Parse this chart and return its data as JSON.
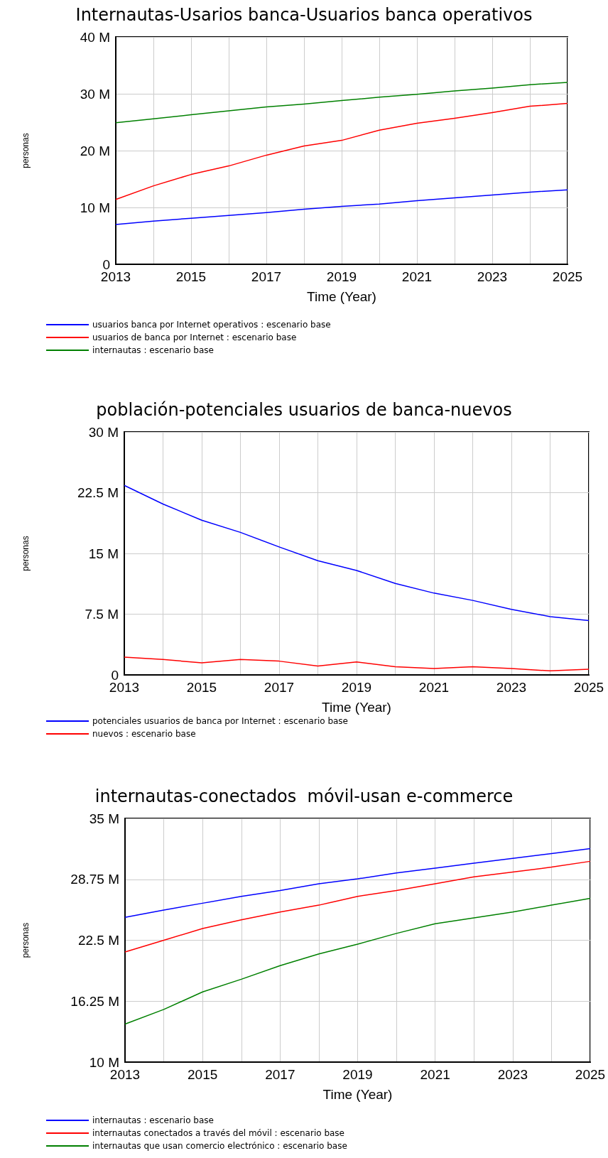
{
  "chart_data": [
    {
      "type": "line",
      "title": "Internautas-Usarios banca-Usuarios banca operativos",
      "xlabel": "Time (Year)",
      "ylabel": "personas",
      "x": [
        2013,
        2014,
        2015,
        2016,
        2017,
        2018,
        2019,
        2020,
        2021,
        2022,
        2023,
        2024,
        2025
      ],
      "xlim": [
        2013,
        2025
      ],
      "xticks": [
        2013,
        {
          "value": 2014,
          "label": null
        },
        2015,
        {
          "value": 2016,
          "label": null
        },
        2017,
        {
          "value": 2018,
          "label": null
        },
        2019,
        {
          "value": 2020,
          "label": null
        },
        2021,
        {
          "value": 2022,
          "label": null
        },
        2023,
        {
          "value": 2024,
          "label": null
        },
        2025
      ],
      "ylim": [
        0,
        40
      ],
      "yticks": [
        {
          "value": 0,
          "label": "0"
        },
        {
          "value": 10,
          "label": "10 M"
        },
        {
          "value": 20,
          "label": "20 M"
        },
        {
          "value": 30,
          "label": "30 M"
        },
        {
          "value": 40,
          "label": "40 M"
        }
      ],
      "grid": true,
      "legend": "bottom",
      "series": [
        {
          "name": "usuarios banca por Internet operativos : escenario base",
          "color": "#0000ff",
          "values": [
            7.0,
            7.6,
            8.1,
            8.6,
            9.1,
            9.7,
            10.2,
            10.6,
            11.2,
            11.7,
            12.2,
            12.7,
            13.1
          ]
        },
        {
          "name": "usuarios de banca por Internet : escenario base",
          "color": "#ff0000",
          "values": [
            11.4,
            13.8,
            15.8,
            17.3,
            19.2,
            20.8,
            21.8,
            23.6,
            24.8,
            25.7,
            26.7,
            27.8,
            28.3
          ]
        },
        {
          "name": "internautas : escenario base",
          "color": "#008000",
          "values": [
            24.9,
            25.6,
            26.3,
            27.0,
            27.7,
            28.2,
            28.8,
            29.4,
            29.9,
            30.5,
            31.0,
            31.6,
            32.0
          ]
        }
      ]
    },
    {
      "type": "line",
      "title": "población-potenciales usuarios de banca-nuevos",
      "xlabel": "Time (Year)",
      "ylabel": "personas",
      "x": [
        2013,
        2014,
        2015,
        2016,
        2017,
        2018,
        2019,
        2020,
        2021,
        2022,
        2023,
        2024,
        2025
      ],
      "xlim": [
        2013,
        2025
      ],
      "xticks": [
        2013,
        {
          "value": 2014,
          "label": null
        },
        2015,
        {
          "value": 2016,
          "label": null
        },
        2017,
        {
          "value": 2018,
          "label": null
        },
        2019,
        {
          "value": 2020,
          "label": null
        },
        2021,
        {
          "value": 2022,
          "label": null
        },
        2023,
        {
          "value": 2024,
          "label": null
        },
        2025
      ],
      "ylim": [
        0,
        30
      ],
      "yticks": [
        {
          "value": 0,
          "label": "0"
        },
        {
          "value": 7.5,
          "label": "7.5 M"
        },
        {
          "value": 15,
          "label": "15 M"
        },
        {
          "value": 22.5,
          "label": "22.5 M"
        },
        {
          "value": 30,
          "label": "30 M"
        }
      ],
      "grid": true,
      "legend": "bottom",
      "series": [
        {
          "name": "potenciales usuarios de banca por Internet : escenario base",
          "color": "#0000ff",
          "values": [
            23.4,
            21.1,
            19.1,
            17.6,
            15.8,
            14.1,
            12.9,
            11.3,
            10.1,
            9.2,
            8.1,
            7.2,
            6.7
          ]
        },
        {
          "name": "nuevos : escenario base",
          "color": "#ff0000",
          "values": [
            2.2,
            1.9,
            1.5,
            1.9,
            1.7,
            1.1,
            1.6,
            1.0,
            0.8,
            1.0,
            0.8,
            0.5,
            0.7
          ]
        }
      ]
    },
    {
      "type": "line",
      "title": "internautas-conectados  móvil-usan e-commerce",
      "xlabel": "Time (Year)",
      "ylabel": "personas",
      "x": [
        2013,
        2014,
        2015,
        2016,
        2017,
        2018,
        2019,
        2020,
        2021,
        2022,
        2023,
        2024,
        2025
      ],
      "xlim": [
        2013,
        2025
      ],
      "xticks": [
        2013,
        {
          "value": 2014,
          "label": null
        },
        2015,
        {
          "value": 2016,
          "label": null
        },
        2017,
        {
          "value": 2018,
          "label": null
        },
        2019,
        {
          "value": 2020,
          "label": null
        },
        2021,
        {
          "value": 2022,
          "label": null
        },
        2023,
        {
          "value": 2024,
          "label": null
        },
        2025
      ],
      "ylim": [
        10,
        35
      ],
      "yticks": [
        {
          "value": 10,
          "label": "10 M"
        },
        {
          "value": 16.25,
          "label": "16.25 M"
        },
        {
          "value": 22.5,
          "label": "22.5 M"
        },
        {
          "value": 28.75,
          "label": "28.75 M"
        },
        {
          "value": 35,
          "label": "35 M"
        }
      ],
      "grid": true,
      "legend": "bottom",
      "series": [
        {
          "name": "internautas : escenario base",
          "color": "#0000ff",
          "values": [
            24.85,
            25.6,
            26.3,
            27.0,
            27.6,
            28.3,
            28.8,
            29.4,
            29.9,
            30.4,
            30.9,
            31.4,
            31.9
          ]
        },
        {
          "name": "internautas conectados a través del móvil : escenario base",
          "color": "#ff0000",
          "values": [
            21.3,
            22.5,
            23.7,
            24.6,
            25.4,
            26.1,
            27.0,
            27.6,
            28.3,
            29.0,
            29.5,
            30.0,
            30.6
          ]
        },
        {
          "name": "internautas que usan comercio electrónico : escenario base",
          "color": "#008000",
          "values": [
            13.9,
            15.4,
            17.2,
            18.5,
            19.9,
            21.1,
            22.1,
            23.2,
            24.2,
            24.8,
            25.4,
            26.1,
            26.8
          ]
        }
      ]
    }
  ]
}
